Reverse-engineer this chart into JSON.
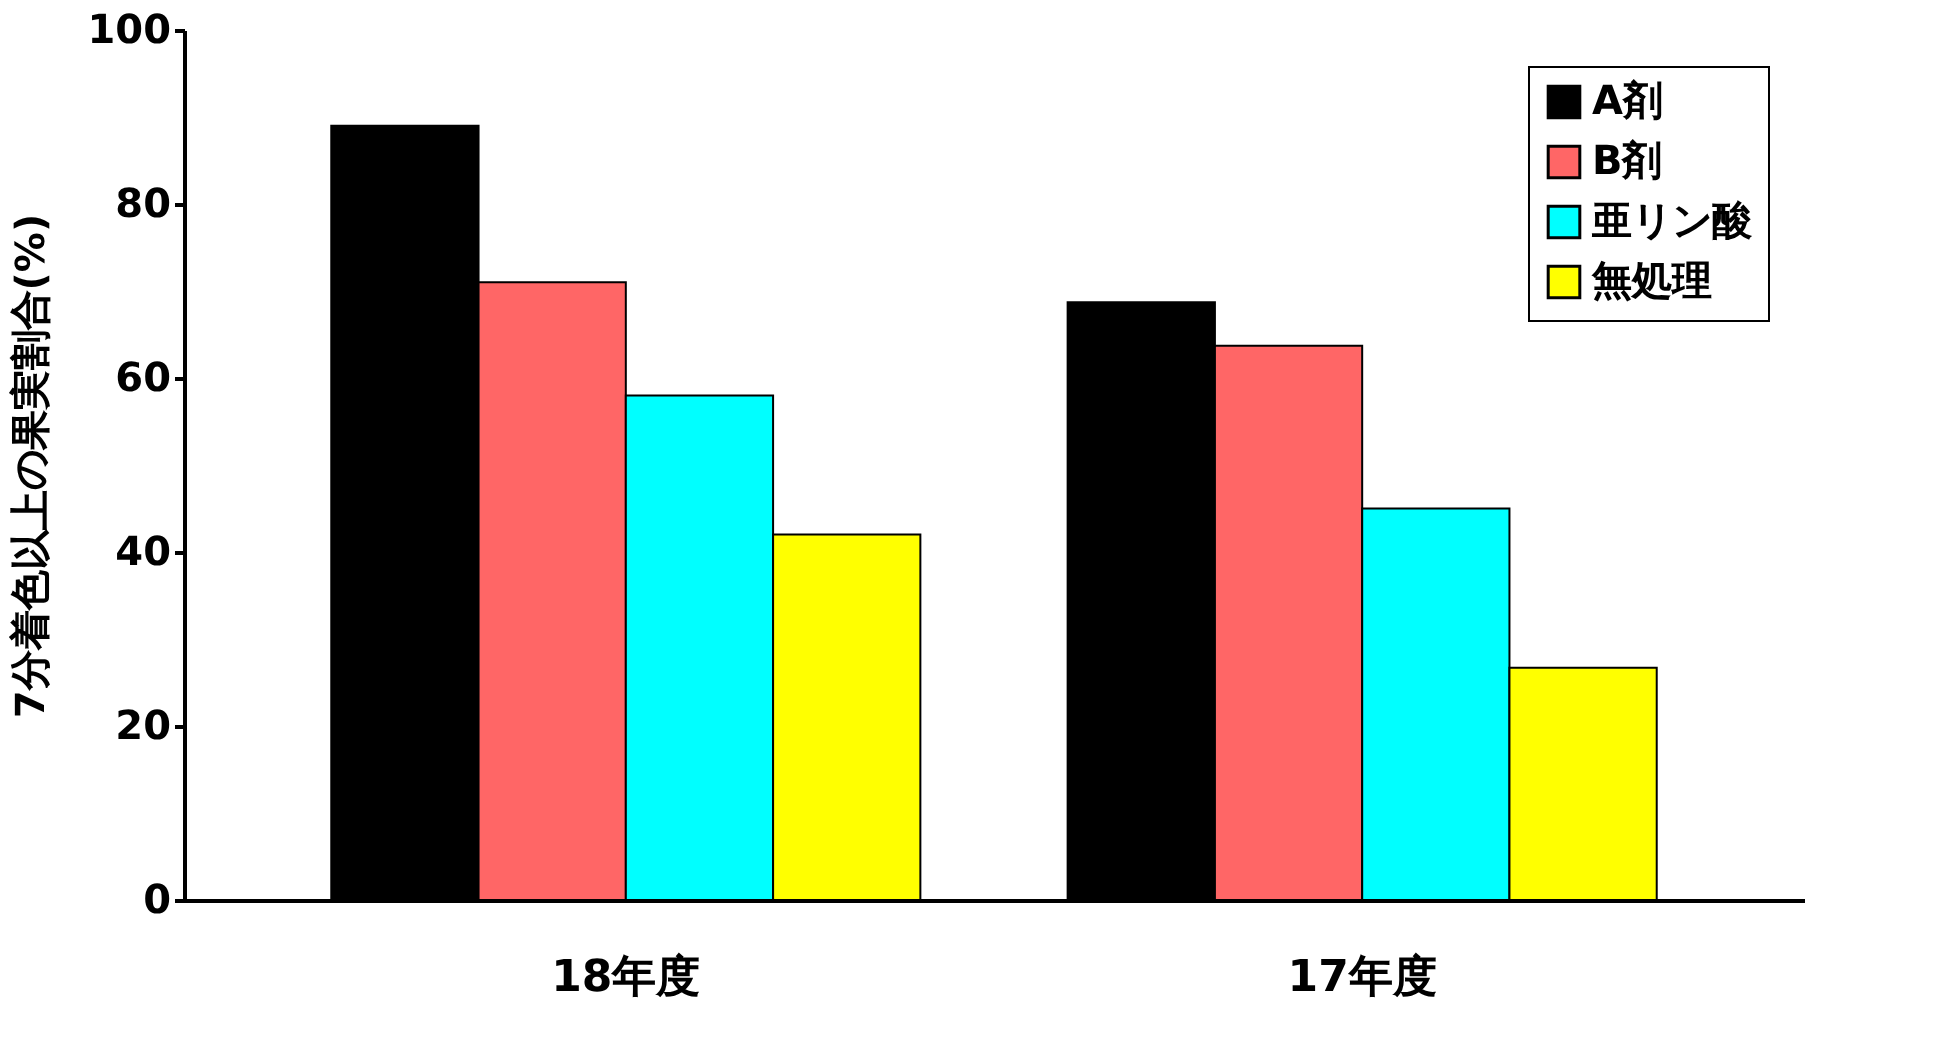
{
  "chart_data": {
    "type": "bar",
    "ylabel": "7分着色以上の果実割合(%)",
    "categories": [
      "18年度",
      "17年度"
    ],
    "series": [
      {
        "name": "A剤",
        "color": "#000000",
        "values": [
          89,
          68.7
        ]
      },
      {
        "name": "B剤",
        "color": "#ff6666",
        "values": [
          71,
          63.7
        ]
      },
      {
        "name": "亜リン酸",
        "color": "#00ffff",
        "values": [
          58,
          45
        ]
      },
      {
        "name": "無処理",
        "color": "#ffff00",
        "values": [
          42,
          26.7
        ]
      }
    ],
    "ylim": [
      0,
      100
    ],
    "yticks": [
      0,
      20,
      40,
      60,
      80,
      100
    ],
    "grid": false,
    "legend": "top right"
  }
}
